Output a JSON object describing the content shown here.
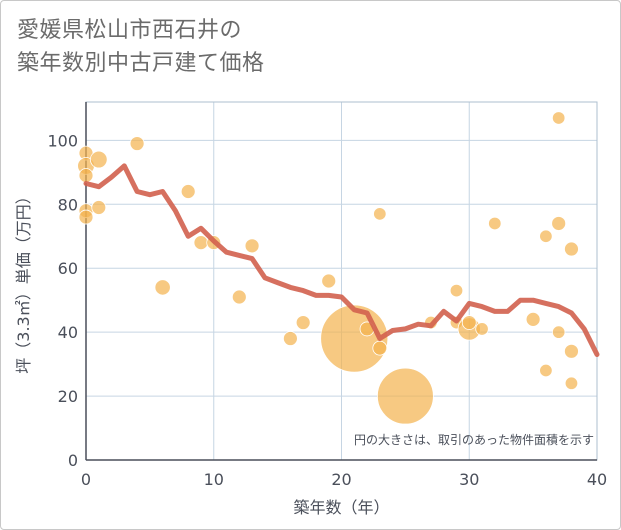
{
  "title_line1": "愛媛県松山市西石井の",
  "title_line2": "築年数別中古戸建て価格",
  "chart_data": {
    "type": "scatter",
    "xlabel": "築年数（年）",
    "ylabel": "坪（3.3㎡）単価（万円）",
    "xlim": [
      0,
      40
    ],
    "ylim": [
      0,
      112
    ],
    "xticks": [
      0,
      10,
      20,
      30,
      40
    ],
    "yticks": [
      0,
      20,
      40,
      60,
      80,
      100
    ],
    "grid": true,
    "note": "円の大きさは、取引のあった物件面積を示す",
    "colors": {
      "bubble": "#f4b24d",
      "line": "#d2614e",
      "grid": "#c6d5e3",
      "axis": "#4a4f5a"
    },
    "bubbles": [
      {
        "x": 0,
        "y": 96,
        "size": 1
      },
      {
        "x": 0,
        "y": 92,
        "size": 1.2
      },
      {
        "x": 0,
        "y": 89,
        "size": 1
      },
      {
        "x": 0,
        "y": 78,
        "size": 1
      },
      {
        "x": 0,
        "y": 76,
        "size": 1
      },
      {
        "x": 1,
        "y": 94,
        "size": 1.2
      },
      {
        "x": 1,
        "y": 79,
        "size": 1
      },
      {
        "x": 4,
        "y": 99,
        "size": 1
      },
      {
        "x": 6,
        "y": 54,
        "size": 1.1
      },
      {
        "x": 8,
        "y": 84,
        "size": 1
      },
      {
        "x": 9,
        "y": 68,
        "size": 1
      },
      {
        "x": 10,
        "y": 68,
        "size": 1
      },
      {
        "x": 12,
        "y": 51,
        "size": 1
      },
      {
        "x": 13,
        "y": 67,
        "size": 1
      },
      {
        "x": 16,
        "y": 38,
        "size": 1
      },
      {
        "x": 17,
        "y": 43,
        "size": 1
      },
      {
        "x": 19,
        "y": 56,
        "size": 1
      },
      {
        "x": 21,
        "y": 38,
        "size": 4.8
      },
      {
        "x": 22,
        "y": 41,
        "size": 1
      },
      {
        "x": 23,
        "y": 77,
        "size": 0.9
      },
      {
        "x": 23,
        "y": 35,
        "size": 1
      },
      {
        "x": 25,
        "y": 20,
        "size": 4
      },
      {
        "x": 27,
        "y": 43,
        "size": 0.9
      },
      {
        "x": 29,
        "y": 53,
        "size": 0.9
      },
      {
        "x": 29,
        "y": 43,
        "size": 0.9
      },
      {
        "x": 30,
        "y": 41,
        "size": 1.6
      },
      {
        "x": 30,
        "y": 43,
        "size": 1
      },
      {
        "x": 31,
        "y": 41,
        "size": 0.9
      },
      {
        "x": 32,
        "y": 74,
        "size": 0.9
      },
      {
        "x": 35,
        "y": 44,
        "size": 1
      },
      {
        "x": 36,
        "y": 70,
        "size": 0.9
      },
      {
        "x": 36,
        "y": 28,
        "size": 0.9
      },
      {
        "x": 37,
        "y": 107,
        "size": 0.9
      },
      {
        "x": 37,
        "y": 74,
        "size": 1
      },
      {
        "x": 37,
        "y": 40,
        "size": 0.9
      },
      {
        "x": 38,
        "y": 66,
        "size": 1
      },
      {
        "x": 38,
        "y": 34,
        "size": 1
      },
      {
        "x": 38,
        "y": 24,
        "size": 0.9
      }
    ],
    "line": [
      [
        0,
        86.5
      ],
      [
        1,
        85.5
      ],
      [
        2,
        88.5
      ],
      [
        3,
        92
      ],
      [
        4,
        84
      ],
      [
        5,
        83
      ],
      [
        6,
        84
      ],
      [
        7,
        78
      ],
      [
        8,
        70
      ],
      [
        9,
        72.5
      ],
      [
        10,
        68.5
      ],
      [
        11,
        65
      ],
      [
        12,
        64
      ],
      [
        13,
        63
      ],
      [
        14,
        57
      ],
      [
        15,
        55.5
      ],
      [
        16,
        54
      ],
      [
        17,
        53
      ],
      [
        18,
        51.5
      ],
      [
        19,
        51.5
      ],
      [
        20,
        51
      ],
      [
        21,
        47
      ],
      [
        22,
        46
      ],
      [
        23,
        38
      ],
      [
        24,
        40.5
      ],
      [
        25,
        41
      ],
      [
        26,
        42.5
      ],
      [
        27,
        42
      ],
      [
        28,
        46.5
      ],
      [
        29,
        43.5
      ],
      [
        30,
        49
      ],
      [
        31,
        48
      ],
      [
        32,
        46.5
      ],
      [
        33,
        46.5
      ],
      [
        34,
        50
      ],
      [
        35,
        50
      ],
      [
        36,
        49
      ],
      [
        37,
        48
      ],
      [
        38,
        46
      ],
      [
        39,
        41
      ],
      [
        40,
        33
      ]
    ]
  }
}
